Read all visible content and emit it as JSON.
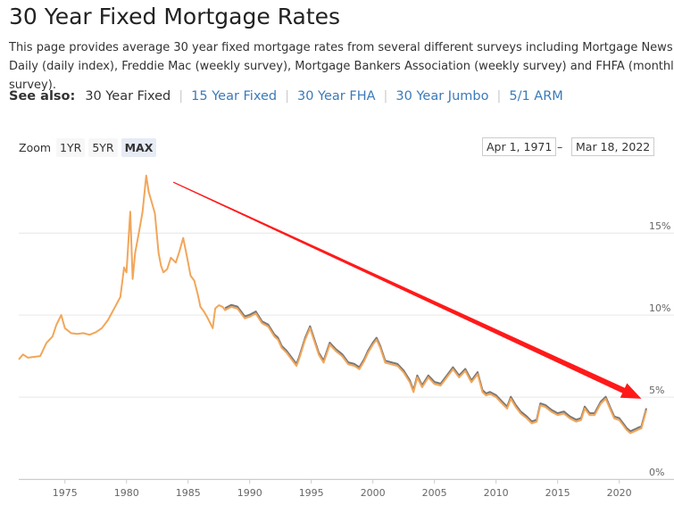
{
  "page": {
    "title": "30 Year Fixed Mortgage Rates",
    "intro": "This page provides average 30 year fixed mortgage rates from several different surveys including Mortgage News Daily (daily index), Freddie Mac (weekly survey), Mortgage Bankers Association (weekly survey) and FHFA (monthly survey)."
  },
  "see_also": {
    "label": "See also:",
    "current": "30 Year Fixed",
    "links": [
      "15 Year Fixed",
      "30 Year FHA",
      "30 Year Jumbo",
      "5/1 ARM"
    ]
  },
  "zoom": {
    "label": "Zoom",
    "buttons": [
      "1YR",
      "5YR",
      "MAX"
    ],
    "active": "MAX"
  },
  "range": {
    "from": "Apr 1, 1971",
    "sep": "–",
    "to": "Mar 18, 2022"
  },
  "colors": {
    "series_primary": "#f2a65a",
    "series_secondary": "#777777",
    "annotation_arrow": "#ff1a1a",
    "link": "#3b7ab8"
  },
  "chart_data": {
    "type": "line",
    "x_unit": "year",
    "xlim": [
      1971.25,
      2022.2
    ],
    "ylim": [
      0,
      18.6
    ],
    "y_ticks": [
      0,
      5,
      10,
      15
    ],
    "y_tick_labels": [
      "0%",
      "5%",
      "10%",
      "15%"
    ],
    "x_ticks": [
      1975,
      1980,
      1985,
      1990,
      1995,
      2000,
      2005,
      2010,
      2015,
      2020
    ],
    "x_tick_labels": [
      "1975",
      "1980",
      "1985",
      "1990",
      "1995",
      "2000",
      "2005",
      "2010",
      "2015",
      "2020"
    ],
    "grid": "horizontal",
    "annotation": {
      "type": "arrow",
      "from": [
        1983.8,
        18.1
      ],
      "to": [
        2021.8,
        4.9
      ]
    },
    "series": [
      {
        "x": [
          1971.25,
          1971.6,
          1972.0,
          1972.5,
          1973.0,
          1973.5,
          1974.0,
          1974.3,
          1974.7,
          1975.0,
          1975.5,
          1976.0,
          1976.5,
          1977.0,
          1977.5,
          1978.0,
          1978.5,
          1979.0,
          1979.5,
          1979.8,
          1980.0,
          1980.3,
          1980.5,
          1980.7,
          1981.0,
          1981.3,
          1981.6,
          1981.8,
          1982.0,
          1982.3,
          1982.6,
          1982.8,
          1983.0,
          1983.3,
          1983.6,
          1984.0,
          1984.3,
          1984.6,
          1984.9,
          1985.2,
          1985.5,
          1985.8,
          1986.0,
          1986.3,
          1986.6,
          1987.0,
          1987.2,
          1987.5,
          1987.8,
          1988.0,
          1988.5,
          1989.0,
          1989.3,
          1989.6,
          1990.0,
          1990.5,
          1991.0,
          1991.5,
          1992.0,
          1992.3,
          1992.6,
          1993.0,
          1993.5,
          1993.8,
          1994.0,
          1994.5,
          1994.9,
          1995.3,
          1995.6,
          1996.0,
          1996.5,
          1997.0,
          1997.5,
          1998.0,
          1998.5,
          1998.9,
          1999.3,
          1999.6,
          2000.0,
          2000.3,
          2000.6,
          2001.0,
          2001.5,
          2002.0,
          2002.5,
          2003.0,
          2003.3,
          2003.6,
          2004.0,
          2004.5,
          2005.0,
          2005.5,
          2006.0,
          2006.5,
          2007.0,
          2007.5,
          2008.0,
          2008.5,
          2008.9,
          2009.2,
          2009.5,
          2010.0,
          2010.5,
          2010.9,
          2011.2,
          2011.6,
          2012.0,
          2012.5,
          2012.9,
          2013.3,
          2013.6,
          2014.0,
          2014.5,
          2015.0,
          2015.5,
          2016.0,
          2016.5,
          2016.9,
          2017.2,
          2017.6,
          2018.0,
          2018.5,
          2018.9,
          2019.3,
          2019.6,
          2020.0,
          2020.3,
          2020.6,
          2020.9,
          2021.2,
          2021.5,
          2021.8,
          2022.2
        ],
        "values": [
          7.3,
          7.6,
          7.4,
          7.45,
          7.5,
          8.3,
          8.7,
          9.4,
          10.0,
          9.2,
          8.9,
          8.85,
          8.9,
          8.8,
          8.95,
          9.2,
          9.7,
          10.4,
          11.1,
          12.9,
          12.6,
          16.3,
          12.2,
          13.8,
          15.0,
          16.3,
          18.5,
          17.5,
          17.0,
          16.2,
          13.8,
          13.0,
          12.6,
          12.8,
          13.5,
          13.2,
          13.9,
          14.7,
          13.6,
          12.4,
          12.1,
          11.2,
          10.5,
          10.2,
          9.8,
          9.2,
          10.4,
          10.6,
          10.5,
          10.3,
          10.5,
          10.4,
          10.1,
          9.8,
          9.9,
          10.1,
          9.5,
          9.3,
          8.7,
          8.5,
          8.0,
          7.7,
          7.2,
          6.9,
          7.3,
          8.5,
          9.2,
          8.3,
          7.6,
          7.1,
          8.2,
          7.8,
          7.5,
          7.0,
          6.9,
          6.7,
          7.2,
          7.7,
          8.2,
          8.5,
          8.0,
          7.1,
          7.0,
          6.9,
          6.5,
          5.9,
          5.3,
          6.2,
          5.6,
          6.2,
          5.8,
          5.7,
          6.2,
          6.7,
          6.2,
          6.6,
          5.9,
          6.4,
          5.3,
          5.1,
          5.2,
          5.0,
          4.6,
          4.3,
          4.9,
          4.4,
          4.0,
          3.7,
          3.4,
          3.5,
          4.5,
          4.4,
          4.1,
          3.9,
          4.0,
          3.7,
          3.5,
          3.6,
          4.3,
          3.9,
          3.9,
          4.6,
          4.9,
          4.2,
          3.7,
          3.6,
          3.3,
          3.0,
          2.8,
          2.9,
          3.0,
          3.1,
          4.2
        ]
      }
    ]
  }
}
